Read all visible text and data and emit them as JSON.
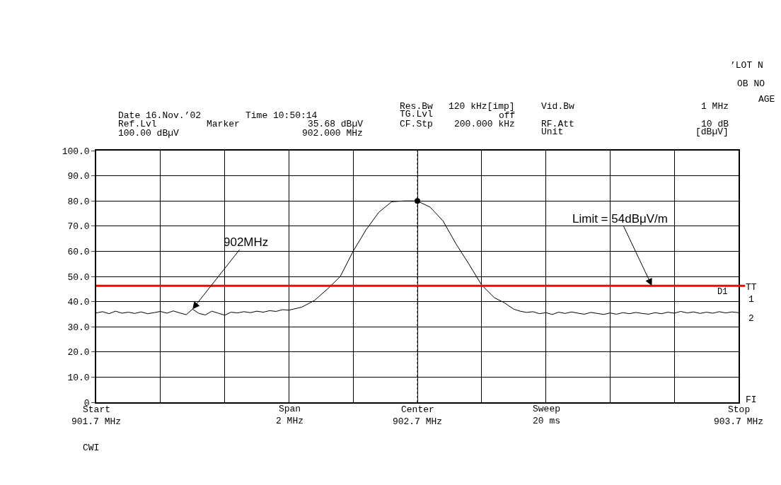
{
  "chart_data": {
    "type": "line",
    "xlim": [
      901.7,
      903.7
    ],
    "xticks": [
      {
        "value": 901.7,
        "label": "901.7 MHz"
      },
      {
        "value": 901.9,
        "label": null
      },
      {
        "value": 902.1,
        "label": null
      },
      {
        "value": 902.3,
        "label": null
      },
      {
        "value": 902.5,
        "label": null
      },
      {
        "value": 902.7,
        "label": "902.7 MHz"
      },
      {
        "value": 902.9,
        "label": null
      },
      {
        "value": 903.1,
        "label": null
      },
      {
        "value": 903.3,
        "label": null
      },
      {
        "value": 903.5,
        "label": null
      },
      {
        "value": 903.7,
        "label": "903.7 MHz"
      }
    ],
    "ylim": [
      0,
      100
    ],
    "yticks": [
      {
        "value": 0,
        "label": "0"
      },
      {
        "value": 10,
        "label": "10.0"
      },
      {
        "value": 20,
        "label": "20.0"
      },
      {
        "value": 30,
        "label": "30.0"
      },
      {
        "value": 40,
        "label": "40.0"
      },
      {
        "value": 50,
        "label": "50.0"
      },
      {
        "value": 60,
        "label": "60.0"
      },
      {
        "value": 70,
        "label": "70.0"
      },
      {
        "value": 80,
        "label": "80.0"
      },
      {
        "value": 90,
        "label": "90.0"
      },
      {
        "value": 100,
        "label": "100.0"
      }
    ],
    "grid": true,
    "series": [
      {
        "color": "#000000",
        "x": [
          901.7,
          901.72,
          901.74,
          901.76,
          901.78,
          901.8,
          901.82,
          901.84,
          901.86,
          901.88,
          901.9,
          901.92,
          901.94,
          901.96,
          901.98,
          902.0,
          902.02,
          902.04,
          902.06,
          902.08,
          902.1,
          902.12,
          902.14,
          902.16,
          902.18,
          902.2,
          902.22,
          902.24,
          902.26,
          902.28,
          902.3,
          902.34,
          902.38,
          902.42,
          902.46,
          902.5,
          902.54,
          902.58,
          902.62,
          902.66,
          902.7,
          902.74,
          902.78,
          902.82,
          902.86,
          902.9,
          902.94,
          902.97,
          903.0,
          903.02,
          903.04,
          903.06,
          903.08,
          903.1,
          903.12,
          903.14,
          903.16,
          903.18,
          903.2,
          903.22,
          903.24,
          903.26,
          903.28,
          903.3,
          903.32,
          903.34,
          903.36,
          903.38,
          903.4,
          903.42,
          903.44,
          903.46,
          903.48,
          903.5,
          903.52,
          903.54,
          903.56,
          903.58,
          903.6,
          903.62,
          903.64,
          903.66,
          903.68,
          903.7
        ],
        "values": [
          35.5,
          36.0,
          35.2,
          36.2,
          35.4,
          35.8,
          35.3,
          35.9,
          35.2,
          35.6,
          36.1,
          35.4,
          36.3,
          35.5,
          34.8,
          37.0,
          35.3,
          34.7,
          36.2,
          35.4,
          34.6,
          35.8,
          35.5,
          36.0,
          35.6,
          36.2,
          35.8,
          36.4,
          36.1,
          36.8,
          36.6,
          37.8,
          40.5,
          45.0,
          50.0,
          60.0,
          68.5,
          75.5,
          79.7,
          80.0,
          80.0,
          77.5,
          72.0,
          63.0,
          55.0,
          46.6,
          41.5,
          39.6,
          37.0,
          36.2,
          35.7,
          36.0,
          35.2,
          35.6,
          34.9,
          35.8,
          35.3,
          35.9,
          35.4,
          35.0,
          35.7,
          35.3,
          34.9,
          35.5,
          35.0,
          35.6,
          35.2,
          35.7,
          35.3,
          35.0,
          35.6,
          35.2,
          35.8,
          35.4,
          36.1,
          35.5,
          35.9,
          35.3,
          35.8,
          35.4,
          36.0,
          35.5,
          35.9,
          35.6
        ]
      },
      {
        "type": "scatter",
        "color": "#000000",
        "marker": "circle",
        "x": [
          902.7
        ],
        "values": [
          80.0
        ]
      }
    ],
    "ref_lines": [
      {
        "axis": "y",
        "value": 46.3,
        "label": "D1",
        "color": "#ff0000",
        "line_style": "solid"
      },
      {
        "axis": "x",
        "value": 902.7,
        "color": "#000000",
        "line_style": "dotted"
      }
    ],
    "annotations": [
      "Date 16.Nov.’02",
      "Time 10:50:14",
      "Ref.Lvl",
      "Marker",
      "35.68 dBµV",
      "100.00 dBµV",
      "902.000 MHz",
      "Res.Bw",
      "TG.Lvl",
      "CF.Stp",
      "120 kHz[imp]",
      "off",
      "200.000 kHz",
      "Vid.Bw",
      "RF.Att",
      "Unit",
      "1 MHz",
      "10 dB",
      "[dBµV]",
      "TT",
      "1",
      "2",
      "FI",
      "CWI",
      "’LOT N",
      "OB NO",
      "AGE",
      "Start",
      "Span\n2 MHz",
      "Center",
      "Sweep\n20 ms",
      "Stop",
      {
        "text": "902MHz",
        "x": 902.0,
        "y": 37.0
      },
      {
        "text": "Limit = 54dBμV/m",
        "x": 903.43,
        "y": 46.3
      }
    ]
  }
}
